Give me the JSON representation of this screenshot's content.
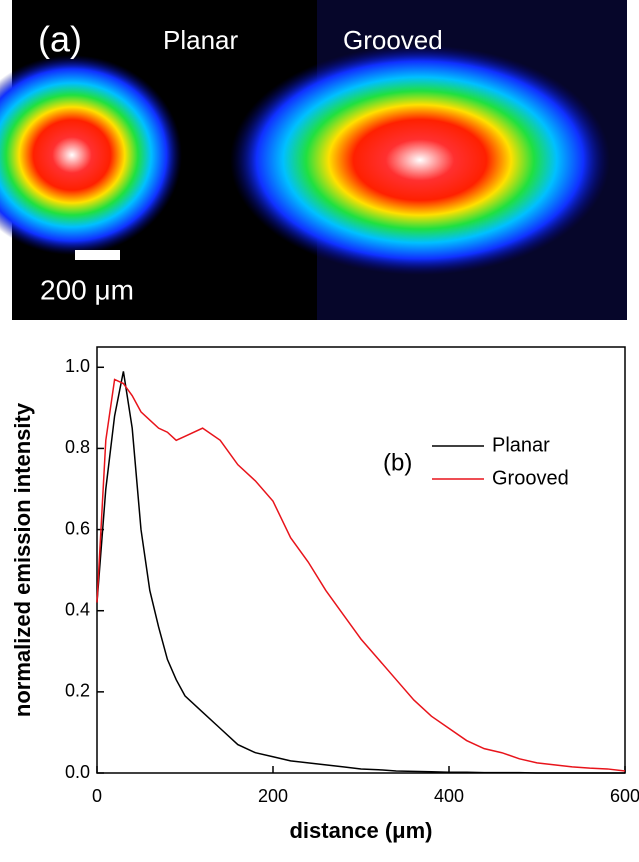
{
  "image_panel": {
    "label": "(a)",
    "titles": [
      "Planar",
      "Grooved"
    ],
    "scale_bar": "200 μm"
  },
  "chart_data": {
    "type": "line",
    "annotation": "(b)",
    "xlabel": "distance (μm)",
    "ylabel": "normalized emission intensity",
    "x": [
      0,
      10,
      20,
      30,
      40,
      50,
      60,
      70,
      80,
      90,
      100,
      120,
      140,
      160,
      180,
      200,
      220,
      240,
      260,
      280,
      300,
      320,
      340,
      360,
      380,
      400,
      420,
      440,
      460,
      480,
      500,
      520,
      540,
      560,
      580,
      600
    ],
    "series": [
      {
        "name": "Planar",
        "color": "#000000",
        "values": [
          0.42,
          0.7,
          0.88,
          0.99,
          0.85,
          0.6,
          0.45,
          0.36,
          0.28,
          0.23,
          0.19,
          0.15,
          0.11,
          0.07,
          0.05,
          0.04,
          0.03,
          0.025,
          0.02,
          0.015,
          0.01,
          0.008,
          0.005,
          0.004,
          0.003,
          0.002,
          0.002,
          0.001,
          0.001,
          0.001,
          0,
          0,
          0,
          0,
          0,
          0
        ]
      },
      {
        "name": "Grooved",
        "color": "#e8141b",
        "values": [
          0.42,
          0.82,
          0.97,
          0.96,
          0.93,
          0.89,
          0.87,
          0.85,
          0.84,
          0.82,
          0.83,
          0.85,
          0.82,
          0.76,
          0.72,
          0.67,
          0.58,
          0.52,
          0.45,
          0.39,
          0.33,
          0.28,
          0.23,
          0.18,
          0.14,
          0.11,
          0.08,
          0.06,
          0.05,
          0.035,
          0.025,
          0.02,
          0.015,
          0.012,
          0.01,
          0.005
        ]
      }
    ],
    "xlim": [
      0,
      600
    ],
    "xticks": [
      0,
      200,
      400,
      600
    ],
    "ylim": [
      0,
      1.05
    ],
    "yticks": [
      {
        "value": 0,
        "label": "0.0"
      },
      0.2,
      0.4,
      0.6,
      0.8,
      {
        "value": 1,
        "label": "1.0"
      }
    ],
    "legend": "upper right"
  }
}
